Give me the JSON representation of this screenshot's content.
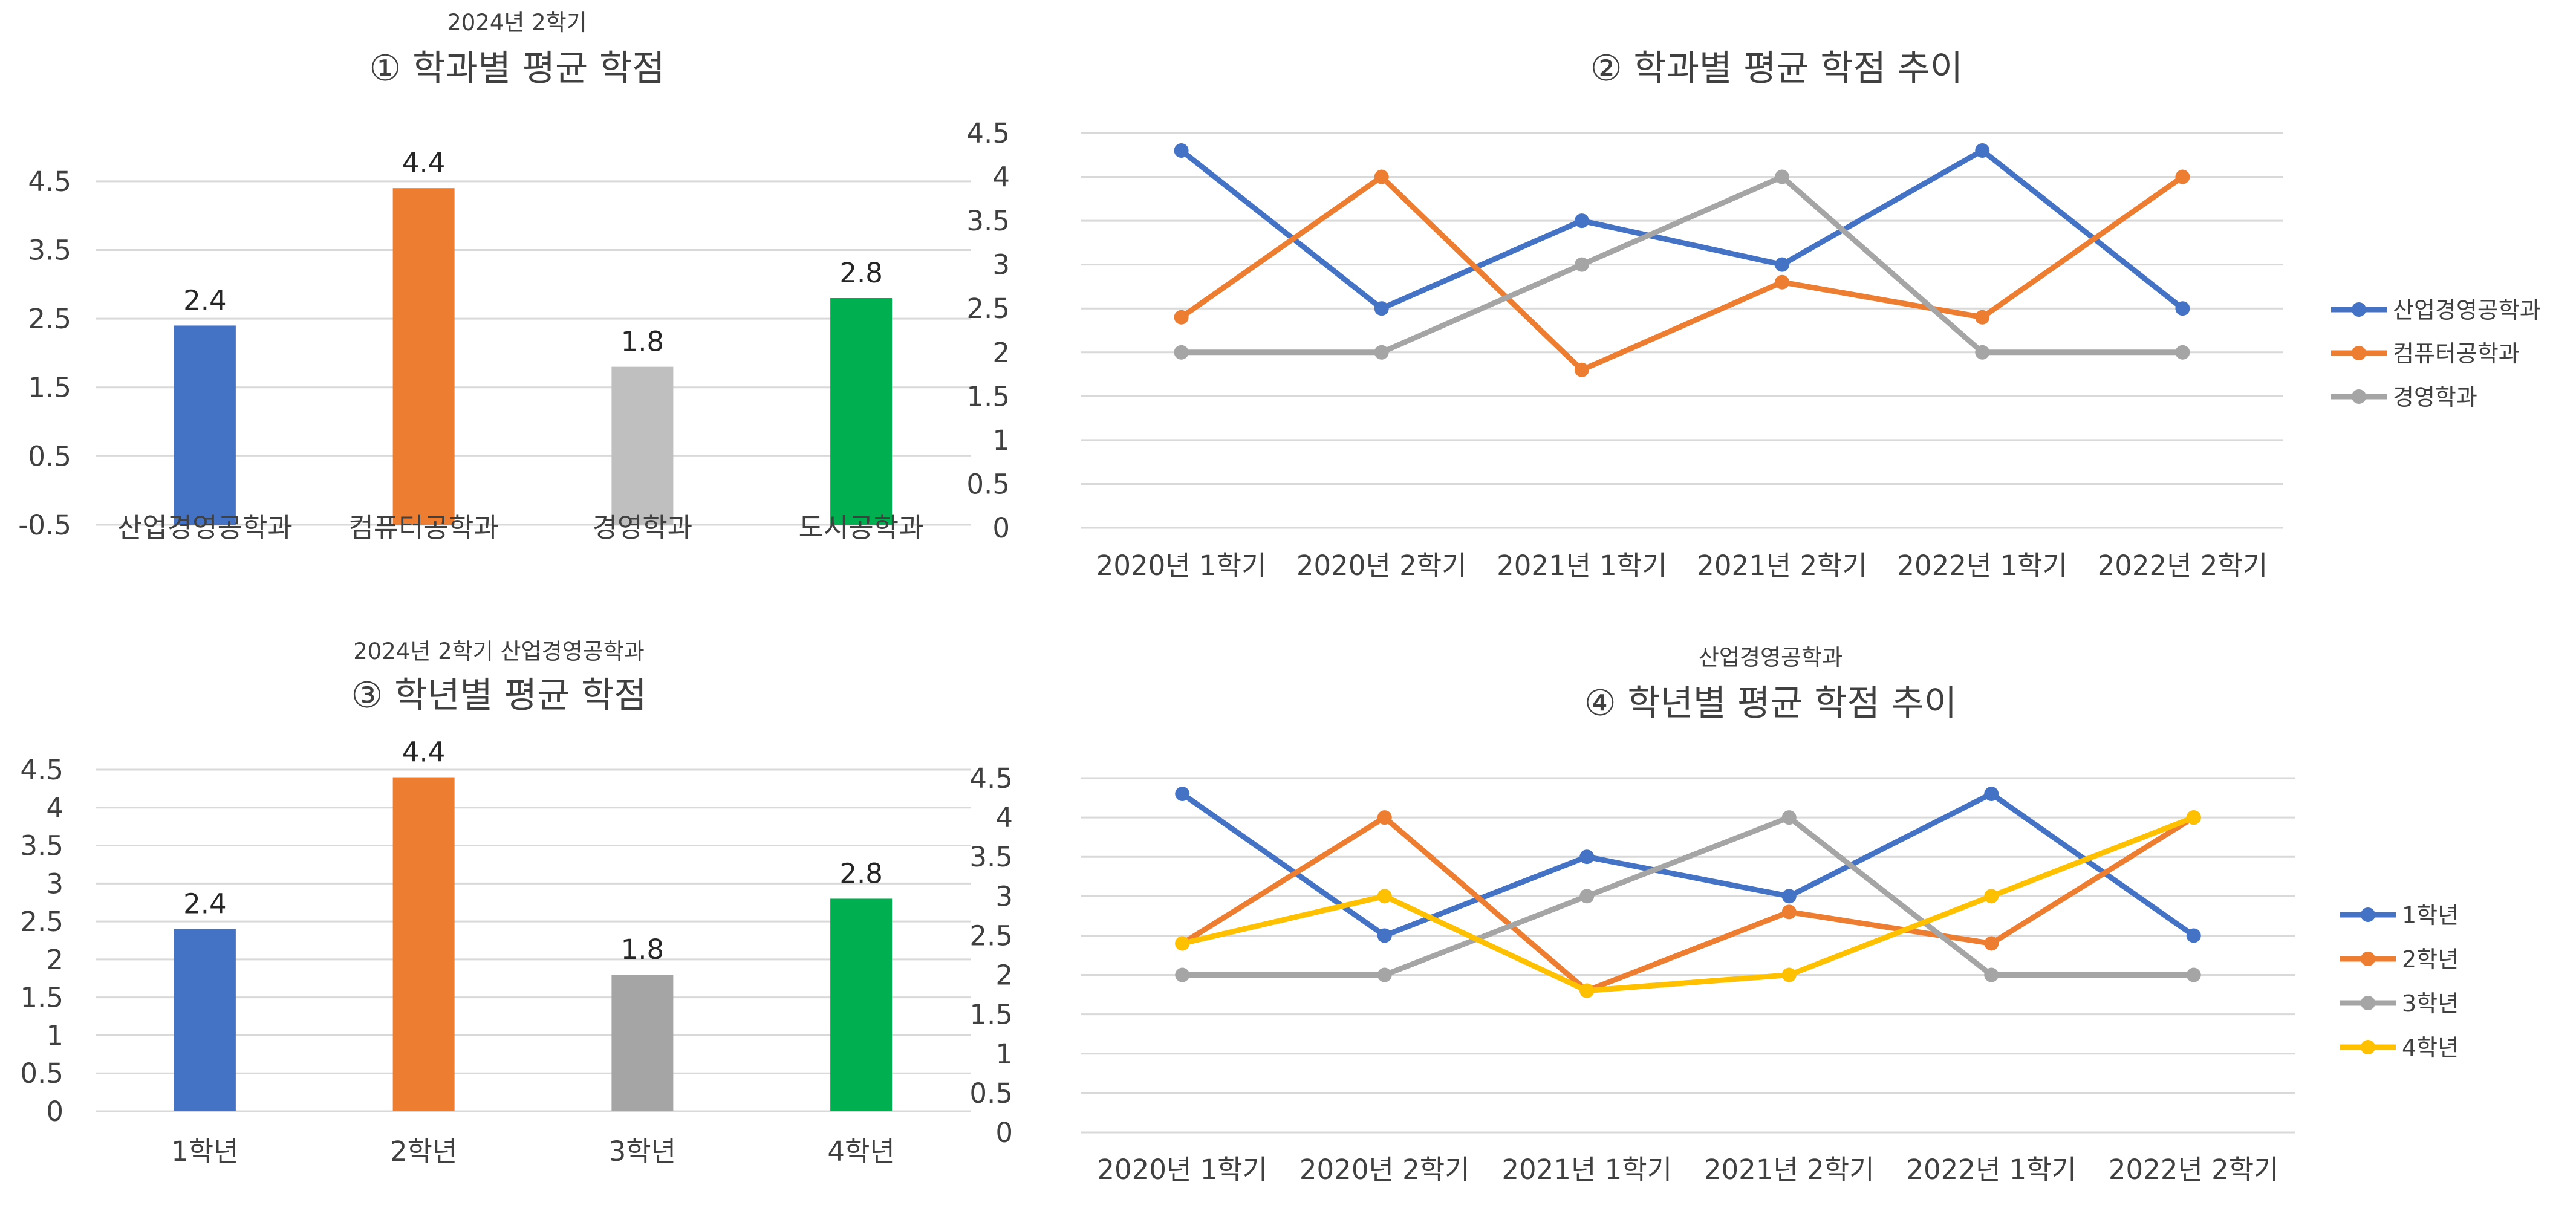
{
  "chart_data": [
    {
      "id": "p1",
      "type": "bar",
      "subtitle": "2024년 2학기",
      "title": "① 학과별 평균 학점",
      "categories": [
        "산업경영공학과",
        "컴퓨터공학과",
        "경영학과",
        "도시공학과"
      ],
      "values": [
        2.4,
        4.4,
        1.8,
        2.8
      ],
      "colors": [
        "#4472C4",
        "#ED7D31",
        "#BFBFBF",
        "#00B050"
      ],
      "ylim": [
        -0.5,
        5.0
      ],
      "yticks": [
        "-0.5",
        "0.5",
        "1.5",
        "2.5",
        "3.5",
        "4.5"
      ],
      "ytick_values": [
        -0.5,
        0.5,
        1.5,
        2.5,
        3.5,
        4.5
      ],
      "data_labels": [
        "2.4",
        "4.4",
        "1.8",
        "2.8"
      ],
      "grid": true
    },
    {
      "id": "p2",
      "type": "line",
      "subtitle": "",
      "title": "② 학과별 평균 학점 추이",
      "categories": [
        "2020년 1학기",
        "2020년 2학기",
        "2021년 1학기",
        "2021년 2학기",
        "2022년 1학기",
        "2022년 2학기"
      ],
      "series": [
        {
          "name": "산업경영공학과",
          "color": "#4472C4",
          "values": [
            4.3,
            2.5,
            3.5,
            3.0,
            4.3,
            2.5
          ]
        },
        {
          "name": "컴퓨터공학과",
          "color": "#ED7D31",
          "values": [
            2.4,
            4.0,
            1.8,
            2.8,
            2.4,
            4.0
          ]
        },
        {
          "name": "경영학과",
          "color": "#A5A5A5",
          "values": [
            2.0,
            2.0,
            3.0,
            4.0,
            2.0,
            2.0
          ]
        }
      ],
      "ylim": [
        0,
        4.5
      ],
      "yticks": [
        "0",
        "0.5",
        "1",
        "1.5",
        "2",
        "2.5",
        "3",
        "3.5",
        "4",
        "4.5"
      ],
      "ytick_values": [
        0,
        0.5,
        1,
        1.5,
        2,
        2.5,
        3,
        3.5,
        4,
        4.5
      ],
      "legend": "right",
      "grid": true
    },
    {
      "id": "p3",
      "type": "bar",
      "subtitle": "2024년 2학기 산업경영공학과",
      "title": "③ 학년별 평균 학점",
      "categories": [
        "1학년",
        "2학년",
        "3학년",
        "4학년"
      ],
      "values": [
        2.4,
        4.4,
        1.8,
        2.8
      ],
      "colors": [
        "#4472C4",
        "#ED7D31",
        "#A5A5A5",
        "#00B050"
      ],
      "ylim": [
        0,
        4.5
      ],
      "yticks": [
        "0",
        "0.5",
        "1",
        "1.5",
        "2",
        "2.5",
        "3",
        "3.5",
        "4",
        "4.5"
      ],
      "ytick_values": [
        0,
        0.5,
        1,
        1.5,
        2,
        2.5,
        3,
        3.5,
        4,
        4.5
      ],
      "data_labels": [
        "2.4",
        "4.4",
        "1.8",
        "2.8"
      ],
      "grid": true
    },
    {
      "id": "p4",
      "type": "line",
      "subtitle": "산업경영공학과",
      "title": "④ 학년별 평균 학점 추이",
      "categories": [
        "2020년 1학기",
        "2020년 2학기",
        "2021년 1학기",
        "2021년 2학기",
        "2022년 1학기",
        "2022년 2학기"
      ],
      "series": [
        {
          "name": "1학년",
          "color": "#4472C4",
          "values": [
            4.3,
            2.5,
            3.5,
            3.0,
            4.3,
            2.5
          ]
        },
        {
          "name": "2학년",
          "color": "#ED7D31",
          "values": [
            2.4,
            4.0,
            1.8,
            2.8,
            2.4,
            4.0
          ]
        },
        {
          "name": "3학년",
          "color": "#A5A5A5",
          "values": [
            2.0,
            2.0,
            3.0,
            4.0,
            2.0,
            2.0
          ]
        },
        {
          "name": "4학년",
          "color": "#FFC000",
          "values": [
            2.4,
            3.0,
            1.8,
            2.0,
            3.0,
            4.0
          ]
        }
      ],
      "ylim": [
        0,
        4.5
      ],
      "yticks": [
        "0",
        "0.5",
        "1",
        "1.5",
        "2",
        "2.5",
        "3",
        "3.5",
        "4",
        "4.5"
      ],
      "ytick_values": [
        0,
        0.5,
        1,
        1.5,
        2,
        2.5,
        3,
        3.5,
        4,
        4.5
      ],
      "legend": "right",
      "grid": true
    }
  ]
}
